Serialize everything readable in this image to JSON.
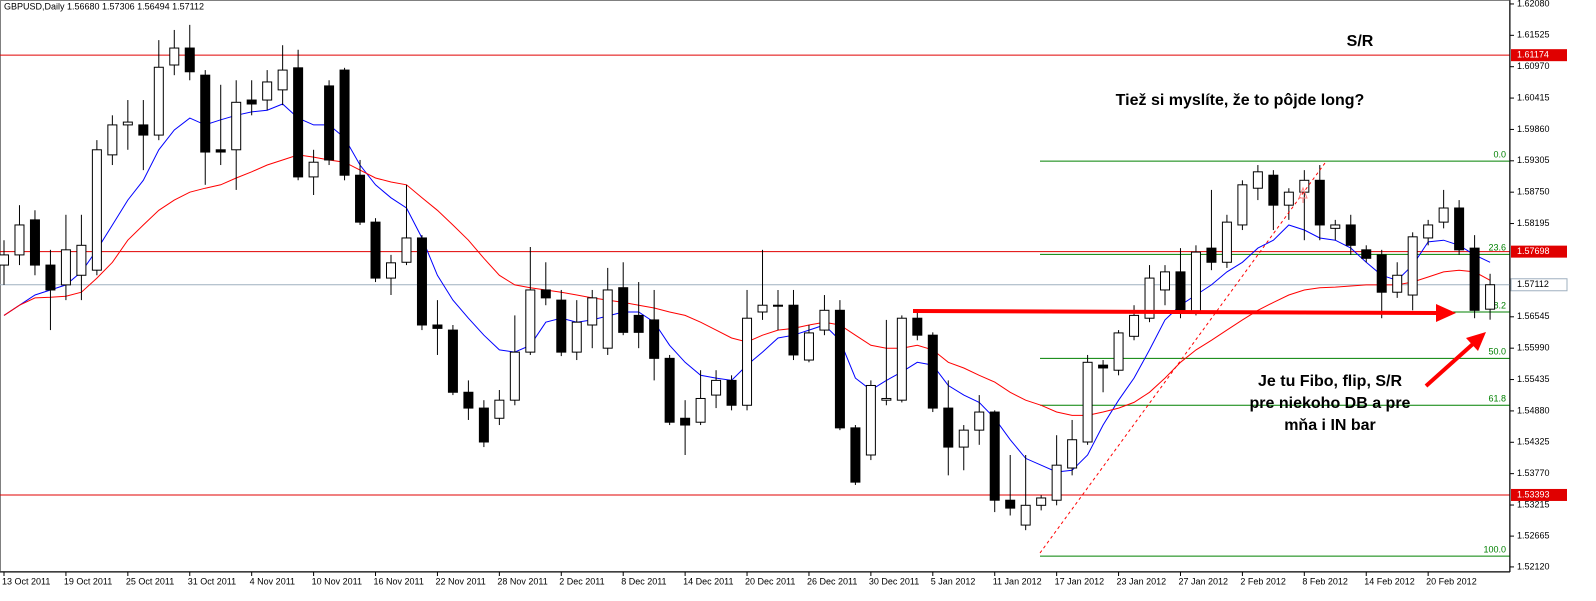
{
  "chart_data": {
    "type": "candlestick",
    "title": "GBPUSD,Daily  1.56680 1.57306 1.56494 1.57112",
    "categories": [
      "13 Oct 2011",
      null,
      null,
      null,
      "19 Oct 2011",
      null,
      null,
      null,
      "25 Oct 2011",
      null,
      null,
      null,
      "31 Oct 2011",
      null,
      null,
      null,
      "4 Nov 2011",
      null,
      null,
      null,
      "10 Nov 2011",
      null,
      null,
      null,
      "16 Nov 2011",
      null,
      null,
      null,
      "22 Nov 2011",
      null,
      null,
      null,
      "28 Nov 2011",
      null,
      null,
      null,
      "2 Dec 2011",
      null,
      null,
      null,
      "8 Dec 2011",
      null,
      null,
      null,
      "14 Dec 2011",
      null,
      null,
      null,
      "20 Dec 2011",
      null,
      null,
      null,
      "26 Dec 2011",
      null,
      null,
      null,
      "30 Dec 2011",
      null,
      null,
      null,
      "5 Jan 2012",
      null,
      null,
      null,
      "11 Jan 2012",
      null,
      null,
      null,
      "17 Jan 2012",
      null,
      null,
      null,
      "23 Jan 2012",
      null,
      null,
      null,
      "27 Jan 2012",
      null,
      null,
      null,
      "2 Feb 2012",
      null,
      null,
      null,
      "8 Feb 2012",
      null,
      null,
      null,
      "14 Feb 2012",
      null,
      null,
      null,
      "20 Feb 2012",
      null,
      null,
      null,
      null
    ],
    "open": [
      1.5746,
      1.5764,
      1.5826,
      1.5746,
      1.5711,
      1.5728,
      1.5737,
      1.5941,
      1.5994,
      1.5994,
      1.5976,
      1.61,
      1.613,
      1.6082,
      1.595,
      1.595,
      1.6038,
      1.6038,
      1.6056,
      1.6095,
      1.5902,
      1.6063,
      1.6091,
      1.5905,
      1.5822,
      1.5723,
      1.5751,
      1.5794,
      1.564,
      1.5631,
      1.5521,
      1.5493,
      1.5475,
      1.5507,
      1.5592,
      1.5702,
      1.5684,
      1.5592,
      1.564,
      1.5599,
      1.5706,
      1.5657,
      1.5649,
      1.5581,
      1.5475,
      1.5468,
      1.5516,
      1.5542,
      1.5498,
      1.5663,
      1.5674,
      1.5675,
      1.5578,
      1.5631,
      1.5666,
      1.5458,
      1.541,
      1.5507,
      1.5507,
      1.5652,
      1.5622,
      1.5493,
      1.5424,
      1.5454,
      1.5486,
      1.533,
      1.5286,
      1.5321,
      1.533,
      1.5387,
      1.5433,
      1.5569,
      1.556,
      1.562,
      1.5652,
      1.5702,
      1.5734,
      1.5663,
      1.5776,
      1.5751,
      1.5817,
      1.5882,
      1.5905,
      1.5852,
      1.5875,
      1.5896,
      1.5811,
      1.5817,
      1.5773,
      1.5764,
      1.5698,
      1.5693,
      1.5794,
      1.5822,
      1.5847,
      1.5776,
      1.5668
    ],
    "high": [
      1.579,
      1.5852,
      1.5843,
      1.5773,
      1.5835,
      1.5835,
      1.5967,
      1.6011,
      1.6038,
      1.6038,
      1.6144,
      1.6162,
      1.6171,
      1.6091,
      1.6065,
      1.6073,
      1.6073,
      1.6091,
      1.6135,
      1.6127,
      1.595,
      1.6073,
      1.6095,
      1.5932,
      1.5829,
      1.5764,
      1.5888,
      1.5799,
      1.5684,
      1.564,
      1.5542,
      1.5507,
      1.5525,
      1.5657,
      1.5778,
      1.5751,
      1.5702,
      1.5684,
      1.5702,
      1.5741,
      1.5751,
      1.5716,
      1.5702,
      1.5587,
      1.5507,
      1.556,
      1.556,
      1.5551,
      1.5702,
      1.5773,
      1.5702,
      1.5702,
      1.564,
      1.5693,
      1.5684,
      1.5463,
      1.5542,
      1.5649,
      1.5657,
      1.5663,
      1.5627,
      1.5542,
      1.5463,
      1.5516,
      1.5489,
      1.541,
      1.541,
      1.5339,
      1.5445,
      1.5472,
      1.5587,
      1.5578,
      1.5631,
      1.5675,
      1.5746,
      1.5746,
      1.5776,
      1.5781,
      1.5879,
      1.5835,
      1.5896,
      1.5923,
      1.5914,
      1.5882,
      1.5914,
      1.5923,
      1.5826,
      1.5835,
      1.5781,
      1.5773,
      1.5751,
      1.5804,
      1.5826,
      1.5879,
      1.5861,
      1.5799,
      1.57306
    ],
    "low": [
      1.5711,
      1.5746,
      1.5728,
      1.5631,
      1.5684,
      1.5684,
      1.5728,
      1.5923,
      1.595,
      1.5914,
      1.5967,
      1.6082,
      1.6073,
      1.5888,
      1.5923,
      1.5879,
      1.6011,
      1.602,
      1.6029,
      1.5896,
      1.587,
      1.5923,
      1.5896,
      1.5817,
      1.5716,
      1.5693,
      1.5746,
      1.5631,
      1.5587,
      1.5516,
      1.5472,
      1.5424,
      1.5463,
      1.5498,
      1.5587,
      1.5675,
      1.5585,
      1.5578,
      1.5599,
      1.5587,
      1.5622,
      1.5599,
      1.5542,
      1.5463,
      1.541,
      1.5463,
      1.5493,
      1.5489,
      1.5489,
      1.5649,
      1.5631,
      1.5578,
      1.5574,
      1.5622,
      1.5454,
      1.5357,
      1.5401,
      1.5498,
      1.5503,
      1.5613,
      1.5486,
      1.5374,
      1.5383,
      1.5428,
      1.5309,
      1.5303,
      1.5277,
      1.5312,
      1.5321,
      1.5374,
      1.5428,
      1.5521,
      1.5551,
      1.5613,
      1.5645,
      1.5675,
      1.5652,
      1.5657,
      1.5737,
      1.5741,
      1.5808,
      1.5861,
      1.5808,
      1.5826,
      1.579,
      1.579,
      1.579,
      1.5764,
      1.5751,
      1.5652,
      1.5688,
      1.5666,
      1.5781,
      1.5811,
      1.5764,
      1.5652,
      1.56494
    ],
    "close": [
      1.5764,
      1.5817,
      1.5746,
      1.5702,
      1.5773,
      1.5781,
      1.595,
      1.5994,
      1.5999,
      1.5976,
      1.6096,
      1.613,
      1.6088,
      1.5946,
      1.5946,
      1.6034,
      1.6031,
      1.607,
      1.6091,
      1.5902,
      1.5928,
      1.5932,
      1.5905,
      1.5822,
      1.5723,
      1.575,
      1.5794,
      1.564,
      1.5634,
      1.5521,
      1.5493,
      1.5433,
      1.5507,
      1.5592,
      1.5702,
      1.5688,
      1.5592,
      1.5645,
      1.5688,
      1.5702,
      1.5627,
      1.5627,
      1.5581,
      1.5468,
      1.5463,
      1.551,
      1.5542,
      1.5498,
      1.5652,
      1.5675,
      1.5675,
      1.5587,
      1.5626,
      1.5666,
      1.5458,
      1.5362,
      1.5533,
      1.551,
      1.5652,
      1.5622,
      1.5493,
      1.5424,
      1.5454,
      1.5486,
      1.533,
      1.5316,
      1.5321,
      1.5334,
      1.5392,
      1.5437,
      1.5574,
      1.5564,
      1.5626,
      1.5657,
      1.5723,
      1.5734,
      1.5663,
      1.5769,
      1.5751,
      1.5822,
      1.5888,
      1.5911,
      1.5852,
      1.5875,
      1.5896,
      1.5817,
      1.5817,
      1.5781,
      1.5758,
      1.5698,
      1.5728,
      1.5796,
      1.5817,
      1.5847,
      1.5773,
      1.5666,
      1.57112
    ],
    "colors": {
      "up": "#ffffff",
      "down": "#000000",
      "outline": "#000000"
    },
    "overlays": [
      {
        "color": "#0000ff",
        "values": [
          1.5657,
          1.5675,
          1.5693,
          1.5702,
          1.5711,
          1.5734,
          1.5773,
          1.5817,
          1.5861,
          1.5896,
          1.595,
          1.5985,
          1.6006,
          1.5994,
          1.6003,
          1.6011,
          1.6017,
          1.602,
          1.6031,
          1.6006,
          1.5994,
          1.5994,
          1.5971,
          1.5923,
          1.5888,
          1.5865,
          1.5847,
          1.5794,
          1.5728,
          1.5684,
          1.5652,
          1.5622,
          1.5596,
          1.5592,
          1.5604,
          1.5645,
          1.5652,
          1.5645,
          1.5649,
          1.5656,
          1.5663,
          1.5663,
          1.5645,
          1.5604,
          1.5574,
          1.5551,
          1.5546,
          1.5542,
          1.5569,
          1.5592,
          1.5617,
          1.5622,
          1.5631,
          1.564,
          1.5613,
          1.5546,
          1.5525,
          1.5542,
          1.5557,
          1.5574,
          1.5569,
          1.5533,
          1.5516,
          1.5503,
          1.5475,
          1.5437,
          1.5404,
          1.5392,
          1.538,
          1.5383,
          1.541,
          1.5463,
          1.5507,
          1.5546,
          1.5596,
          1.5649,
          1.5675,
          1.5693,
          1.5711,
          1.5734,
          1.5751,
          1.5776,
          1.579,
          1.5817,
          1.5808,
          1.5794,
          1.579,
          1.5776,
          1.5751,
          1.5728,
          1.5719,
          1.5746,
          1.5787,
          1.579,
          1.5781,
          1.5764,
          1.5751
        ]
      },
      {
        "color": "#ff0000",
        "values": [
          1.5657,
          1.5675,
          1.5688,
          1.5689,
          1.5691,
          1.5698,
          1.5723,
          1.5751,
          1.579,
          1.5817,
          1.5843,
          1.5861,
          1.5875,
          1.5882,
          1.5888,
          1.59,
          1.5911,
          1.5923,
          1.5932,
          1.5941,
          1.5937,
          1.5932,
          1.5928,
          1.5914,
          1.59,
          1.5893,
          1.5888,
          1.5865,
          1.5843,
          1.5817,
          1.579,
          1.5758,
          1.5728,
          1.5711,
          1.5706,
          1.5702,
          1.5698,
          1.5693,
          1.5688,
          1.5684,
          1.568,
          1.5675,
          1.567,
          1.5663,
          1.5657,
          1.5645,
          1.5631,
          1.5617,
          1.561,
          1.5622,
          1.5631,
          1.5634,
          1.564,
          1.5645,
          1.564,
          1.5622,
          1.5604,
          1.5599,
          1.5599,
          1.5604,
          1.5596,
          1.5574,
          1.5564,
          1.5551,
          1.5539,
          1.5521,
          1.5507,
          1.5498,
          1.5486,
          1.548,
          1.548,
          1.5486,
          1.5493,
          1.5503,
          1.5521,
          1.5546,
          1.5574,
          1.5596,
          1.5613,
          1.5631,
          1.5649,
          1.5666,
          1.568,
          1.5693,
          1.5702,
          1.5706,
          1.5707,
          1.5709,
          1.5711,
          1.5711,
          1.5711,
          1.5716,
          1.5725,
          1.5734,
          1.5737,
          1.5734,
          1.5719
        ]
      }
    ],
    "ylim": [
      1.5203,
      1.6215
    ],
    "yticks": [
      {
        "value": 1.6208,
        "label": "1.62080"
      },
      1.61525,
      {
        "value": 1.6097,
        "label": "1.60970"
      },
      1.60415,
      {
        "value": 1.5986,
        "label": "1.59860"
      },
      1.59305,
      {
        "value": 1.5875,
        "label": "1.58750"
      },
      1.58195,
      1.56545,
      {
        "value": 1.5599,
        "label": "1.55990"
      },
      1.55435,
      {
        "value": 1.5488,
        "label": "1.54880"
      },
      1.54325,
      {
        "value": 1.5377,
        "label": "1.53770"
      },
      1.53215,
      1.52665,
      {
        "value": 1.5212,
        "label": "1.52120"
      }
    ],
    "hlines": [
      {
        "value": 1.61174,
        "color": "#e00000"
      },
      {
        "value": 1.57698,
        "color": "#e00000"
      },
      {
        "value": 1.53393,
        "color": "#e00000"
      }
    ],
    "price_line": {
      "value": 1.57112,
      "color": "#9fb0bf"
    },
    "fibonacci": {
      "color": "#008000",
      "levels": [
        {
          "value": 1.593,
          "label": "0.0"
        },
        {
          "value": 1.5765,
          "label": "23.6"
        },
        {
          "value": 1.5663,
          "label": "38.2"
        },
        {
          "value": 1.5581,
          "label": "50.0"
        },
        {
          "value": 1.5498,
          "label": "61.8"
        },
        {
          "value": 1.5231,
          "label": "100.0"
        }
      ]
    },
    "annotations": [
      "S/R",
      "Tiež si myslíte, že to pôjde long?",
      [
        "Je tu Fibo, flip, S/R",
        "pre niekoho DB a pre",
        "mňa i IN bar"
      ]
    ]
  }
}
